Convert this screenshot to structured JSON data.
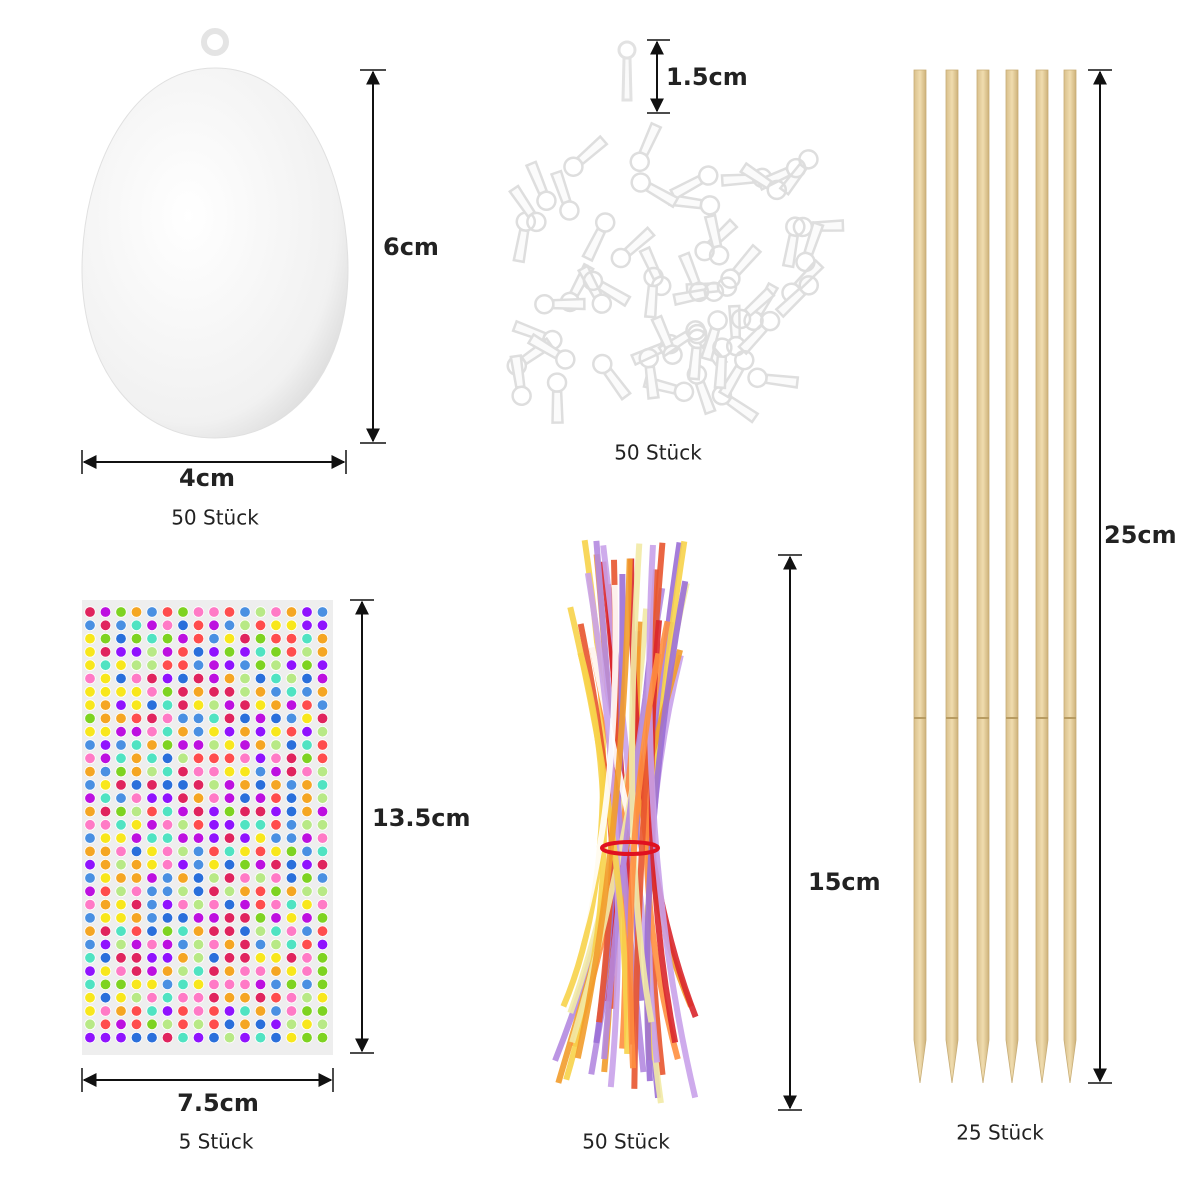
{
  "egg": {
    "height": "6cm",
    "width": "4cm",
    "count": "50 Stück"
  },
  "hooks": {
    "height": "1.5cm",
    "count": "50 Stück"
  },
  "sticks": {
    "length": "25cm",
    "count": "25 Stück"
  },
  "gems": {
    "height": "13.5cm",
    "width": "7.5cm",
    "count": "5 Stück"
  },
  "ribbons": {
    "length": "15cm",
    "count": "50 Stück"
  }
}
